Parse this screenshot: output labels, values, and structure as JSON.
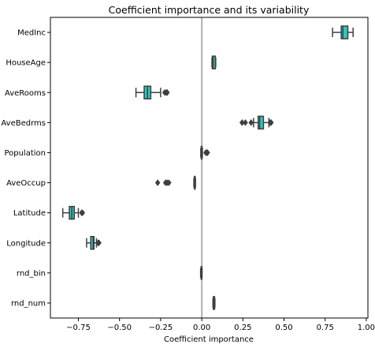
{
  "chart_data": {
    "type": "box",
    "title": "Coefficient importance and its variability",
    "xlabel": "Coefficient importance",
    "ylabel": "",
    "xlim": [
      -0.92,
      1.01
    ],
    "xticks": [
      -0.75,
      -0.5,
      -0.25,
      0.0,
      0.25,
      0.5,
      0.75,
      1.0
    ],
    "xtick_labels": [
      "−0.75",
      "−0.50",
      "−0.25",
      "0.00",
      "0.25",
      "0.50",
      "0.75",
      "1.00"
    ],
    "grid": false,
    "zero_line": 0.0,
    "colors": {
      "box_fill": "#2bc9c0",
      "box_edge": "#3f3f3f",
      "zero_line": "#808080",
      "axis": "#000000"
    },
    "categories": [
      "MedInc",
      "HouseAge",
      "AveRooms",
      "AveBedrms",
      "Population",
      "AveOccup",
      "Latitude",
      "Longitude",
      "rnd_bin",
      "rnd_num"
    ],
    "boxes": [
      {
        "label": "MedInc",
        "whislo": 0.795,
        "q1": 0.848,
        "med": 0.858,
        "q3": 0.888,
        "whishi": 0.92,
        "fliers": []
      },
      {
        "label": "HouseAge",
        "whislo": 0.062,
        "q1": 0.064,
        "med": 0.069,
        "q3": 0.083,
        "whishi": 0.085,
        "fliers": []
      },
      {
        "label": "AveRooms",
        "whislo": -0.4,
        "q1": -0.35,
        "med": -0.33,
        "q3": -0.31,
        "whishi": -0.25,
        "fliers": [
          -0.225,
          -0.215,
          -0.21
        ]
      },
      {
        "label": "AveBedrms",
        "whislo": 0.315,
        "q1": 0.343,
        "med": 0.352,
        "q3": 0.375,
        "whishi": 0.408,
        "fliers": [
          0.245,
          0.265,
          0.3,
          0.415,
          0.422
        ]
      },
      {
        "label": "Population",
        "whislo": -0.006,
        "q1": -0.003,
        "med": -0.002,
        "q3": 0.001,
        "whishi": 0.004,
        "fliers": [
          0.025,
          0.03,
          0.035
        ]
      },
      {
        "label": "AveOccup",
        "whislo": -0.048,
        "q1": -0.045,
        "med": -0.043,
        "q3": -0.041,
        "whishi": -0.038,
        "fliers": [
          -0.268,
          -0.22,
          -0.21,
          -0.2
        ]
      },
      {
        "label": "Latitude",
        "whislo": -0.845,
        "q1": -0.805,
        "med": -0.79,
        "q3": -0.775,
        "whishi": -0.75,
        "fliers": [
          -0.73,
          -0.725
        ]
      },
      {
        "label": "Longitude",
        "whislo": -0.7,
        "q1": -0.675,
        "med": -0.66,
        "q3": -0.655,
        "whishi": -0.64,
        "fliers": [
          -0.63,
          -0.625
        ]
      },
      {
        "label": "rnd_bin",
        "whislo": -0.007,
        "q1": -0.004,
        "med": -0.003,
        "q3": -0.001,
        "whishi": 0.002,
        "fliers": []
      },
      {
        "label": "rnd_num",
        "whislo": 0.068,
        "q1": 0.07,
        "med": 0.072,
        "q3": 0.078,
        "whishi": 0.08,
        "fliers": []
      }
    ]
  }
}
